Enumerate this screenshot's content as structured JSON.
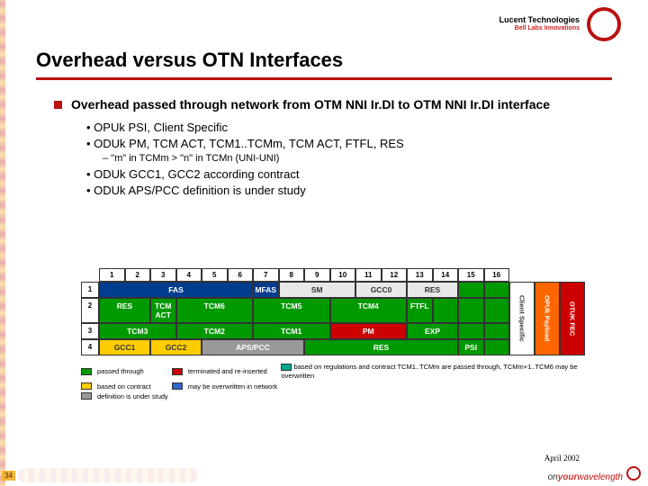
{
  "header": {
    "brand": "Lucent Technologies",
    "sub": "Bell Labs Innovations"
  },
  "title": "Overhead versus OTN Interfaces",
  "bullets": {
    "main": "Overhead passed through network from OTM NNI Ir.DI to OTM NNI Ir.DI interface",
    "s1": "• OPUk PSI, Client Specific",
    "s2": "• ODUk PM, TCM ACT, TCM1..TCMm, TCM ACT, FTFL, RES",
    "s2a": "– \"m\" in TCMm > \"n\" in TCMn (UNI-UNI)",
    "s3": "• ODUk GCC1, GCC2 according contract",
    "s4": "• ODUk APS/PCC definition is under study"
  },
  "cols": [
    "1",
    "2",
    "3",
    "4",
    "5",
    "6",
    "7",
    "8",
    "9",
    "10",
    "11",
    "12",
    "13",
    "14",
    "15",
    "16"
  ],
  "rows": [
    "1",
    "2",
    "3",
    "4"
  ],
  "table": {
    "r1": [
      {
        "t": "FAS",
        "c": "blue",
        "span": 6
      },
      {
        "t": "MFAS",
        "c": "blue",
        "span": 1
      },
      {
        "t": "SM",
        "c": "white",
        "span": 3
      },
      {
        "t": "GCC0",
        "c": "white",
        "span": 2
      },
      {
        "t": "RES",
        "c": "white",
        "span": 2
      },
      {
        "t": "",
        "c": "green",
        "span": 1
      },
      {
        "t": "",
        "c": "green",
        "span": 1
      }
    ],
    "r2": [
      {
        "t": "RES",
        "c": "green",
        "span": 2
      },
      {
        "t": "TCM ACT",
        "c": "green",
        "span": 1
      },
      {
        "t": "TCM6",
        "c": "green",
        "span": 3
      },
      {
        "t": "TCM5",
        "c": "green",
        "span": 3
      },
      {
        "t": "TCM4",
        "c": "green",
        "span": 3
      },
      {
        "t": "FTFL",
        "c": "green",
        "span": 1
      },
      {
        "t": "",
        "c": "green",
        "span": 1
      },
      {
        "t": "",
        "c": "green",
        "span": 1
      },
      {
        "t": "",
        "c": "green",
        "span": 1
      }
    ],
    "r3": [
      {
        "t": "TCM3",
        "c": "green",
        "span": 3
      },
      {
        "t": "TCM2",
        "c": "green",
        "span": 3
      },
      {
        "t": "TCM1",
        "c": "green",
        "span": 3
      },
      {
        "t": "PM",
        "c": "red",
        "span": 3
      },
      {
        "t": "EXP",
        "c": "green",
        "span": 2
      },
      {
        "t": "",
        "c": "green",
        "span": 1
      },
      {
        "t": "",
        "c": "green",
        "span": 1
      }
    ],
    "r4": [
      {
        "t": "GCC1",
        "c": "yellow",
        "span": 2
      },
      {
        "t": "GCC2",
        "c": "yellow",
        "span": 2
      },
      {
        "t": "APS/PCC",
        "c": "gray",
        "span": 4
      },
      {
        "t": "RES",
        "c": "green",
        "span": 6
      },
      {
        "t": "PSI",
        "c": "green",
        "span": 1
      },
      {
        "t": "",
        "c": "green",
        "span": 1
      }
    ]
  },
  "vlabels": {
    "v1": "OTUK FEC",
    "v2": "OPUk Payload",
    "v3": "Client Specific"
  },
  "legend": {
    "l1": "passed through",
    "l2": "terminated and re-inserted",
    "l3": "based on contract",
    "l4": "may be overwritten in network",
    "l5": "definition is under study",
    "r1": "based on regulations and contract TCM1..TCMm are passed through, TCMm+1..TCM6 may be overwritten"
  },
  "colors": {
    "green": "#009900",
    "red": "#cc0000",
    "yellow": "#ffcc00",
    "blue": "#3366cc",
    "gray": "#999999",
    "teal": "#00aa88"
  },
  "footer": {
    "date": "April 2002",
    "page": "34",
    "tag_on": "on",
    "tag_your": "your",
    "tag_wave": "wavelength"
  }
}
